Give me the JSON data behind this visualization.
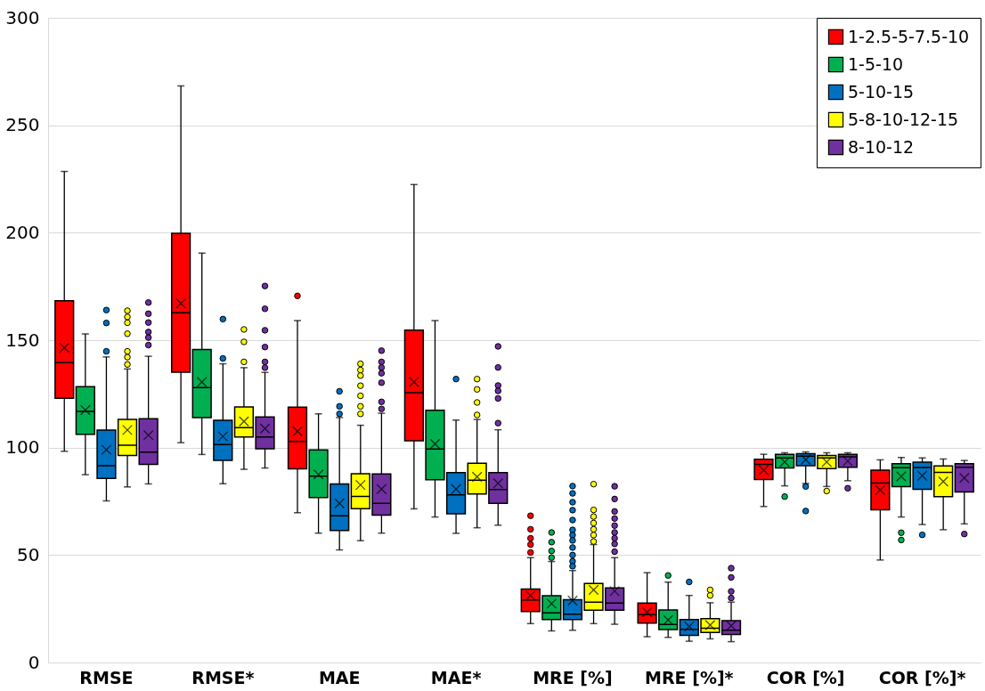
{
  "chart_data": {
    "type": "box",
    "categories": [
      "RMSE",
      "RMSE*",
      "MAE",
      "MAE*",
      "MRE [%]",
      "MRE [%]*",
      "COR [%]",
      "COR [%]*"
    ],
    "ylim": [
      0,
      300
    ],
    "yticks": [
      0,
      50,
      100,
      150,
      200,
      250,
      300
    ],
    "grid": "y",
    "legend": "top right",
    "series": [
      {
        "name": "1-2.5-5-7.5-10",
        "color": "#ff0000",
        "boxes": [
          {
            "low": 98.3,
            "q1": 123,
            "median": 139.5,
            "q3": 168.3,
            "high": 228.5,
            "mean": 146.5
          },
          {
            "low": 102.3,
            "q1": 135.1,
            "median": 162.7,
            "q3": 199.7,
            "high": 268.3,
            "mean": 167.1
          },
          {
            "low": 69.7,
            "q1": 90.1,
            "median": 102.9,
            "q3": 118.8,
            "high": 159.1,
            "mean": 107.6,
            "outliers": [
              170.6
            ]
          },
          {
            "low": 71.5,
            "q1": 103.2,
            "median": 125.6,
            "q3": 154.7,
            "high": 222.4,
            "mean": 130.5
          },
          {
            "low": 18.1,
            "q1": 23.7,
            "median": 29.1,
            "q3": 34.2,
            "high": 48.8,
            "mean": 31.2,
            "outliers": [
              68.3,
              62.0,
              57.8,
              54.9,
              51.2
            ]
          },
          {
            "low": 12.0,
            "q1": 18.3,
            "median": 22.3,
            "q3": 27.7,
            "high": 41.8,
            "mean": 23.4
          },
          {
            "low": 72.6,
            "q1": 85.2,
            "median": 92.2,
            "q3": 94.6,
            "high": 96.9,
            "mean": 89.5
          },
          {
            "low": 47.7,
            "q1": 71.1,
            "median": 83.5,
            "q3": 89.5,
            "high": 94.3,
            "mean": 80.3
          }
        ]
      },
      {
        "name": "1-5-10",
        "color": "#00b050",
        "boxes": [
          {
            "low": 87.4,
            "q1": 106.2,
            "median": 116.8,
            "q3": 128.4,
            "high": 152.9,
            "mean": 117.5
          },
          {
            "low": 96.8,
            "q1": 113.9,
            "median": 127.9,
            "q3": 145.7,
            "high": 190.5,
            "mean": 130.5
          },
          {
            "low": 60.2,
            "q1": 76.8,
            "median": 86.7,
            "q3": 98.9,
            "high": 115.7,
            "mean": 87.5
          },
          {
            "low": 67.7,
            "q1": 85.1,
            "median": 99.3,
            "q3": 117.4,
            "high": 159.1,
            "mean": 101.7
          },
          {
            "low": 14.7,
            "q1": 20.0,
            "median": 23.1,
            "q3": 31.1,
            "high": 47.0,
            "mean": 27.4,
            "outliers": [
              60.5,
              56.0,
              51.9,
              48.8
            ]
          },
          {
            "low": 11.7,
            "q1": 15.3,
            "median": 17.7,
            "q3": 24.4,
            "high": 37.4,
            "mean": 19.8,
            "outliers": [
              40.5
            ]
          },
          {
            "low": 82.2,
            "q1": 90.5,
            "median": 95.2,
            "q3": 96.9,
            "high": 97.6,
            "mean": 93.3,
            "outliers": [
              77.2
            ]
          },
          {
            "low": 67.7,
            "q1": 81.8,
            "median": 90.6,
            "q3": 92.5,
            "high": 95.4,
            "mean": 86.6,
            "outliers": [
              60.4,
              57.0
            ]
          }
        ]
      },
      {
        "name": "5-10-15",
        "color": "#0070c0",
        "boxes": [
          {
            "low": 75.2,
            "q1": 85.7,
            "median": 91.6,
            "q3": 108.2,
            "high": 142.2,
            "mean": 99.0,
            "outliers": [
              164.0,
              158.0,
              144.8
            ]
          },
          {
            "low": 83.2,
            "q1": 94.1,
            "median": 101.4,
            "q3": 112.7,
            "high": 139.0,
            "mean": 105.2,
            "outliers": [
              159.8,
              141.5
            ]
          },
          {
            "low": 52.4,
            "q1": 61.4,
            "median": 68.3,
            "q3": 83.1,
            "high": 114.0,
            "mean": 74.1,
            "outliers": [
              126.2,
              119.2,
              115.7
            ]
          },
          {
            "low": 60.1,
            "q1": 69.2,
            "median": 78.0,
            "q3": 88.4,
            "high": 112.8,
            "mean": 80.7,
            "outliers": [
              131.9
            ]
          },
          {
            "low": 15.0,
            "q1": 20.0,
            "median": 22.5,
            "q3": 29.2,
            "high": 42.8,
            "mean": 28.8,
            "outliers": [
              82.1,
              78.7,
              74.6,
              70.9,
              66.3,
              61.7,
              59.3,
              56.8,
              53.5,
              50.0,
              47.1,
              44.8
            ]
          },
          {
            "low": 9.9,
            "q1": 12.6,
            "median": 15.4,
            "q3": 20.0,
            "high": 31.2,
            "mean": 16.8,
            "outliers": [
              37.5
            ]
          },
          {
            "low": 83.3,
            "q1": 91.6,
            "median": 96.0,
            "q3": 97.2,
            "high": 98.0,
            "mean": 94.4,
            "outliers": [
              81.9,
              70.5
            ]
          },
          {
            "low": 64.2,
            "q1": 80.6,
            "median": 90.7,
            "q3": 93.2,
            "high": 95.2,
            "mean": 86.9,
            "outliers": [
              59.4
            ]
          }
        ]
      },
      {
        "name": "5-8-10-12-15",
        "color": "#ffff00",
        "boxes": [
          {
            "low": 81.7,
            "q1": 96.3,
            "median": 101.1,
            "q3": 113.1,
            "high": 136.6,
            "mean": 108.2,
            "outliers": [
              163.7,
              160.8,
              158.1,
              153.0,
              144.8,
              142.1,
              138.7
            ]
          },
          {
            "low": 89.9,
            "q1": 104.9,
            "median": 109.3,
            "q3": 118.9,
            "high": 137.2,
            "mean": 112.2,
            "outliers": [
              155.0,
              149.2,
              139.9
            ]
          },
          {
            "low": 56.7,
            "q1": 71.6,
            "median": 77.3,
            "q3": 87.8,
            "high": 110.4,
            "mean": 82.6,
            "outliers": [
              139.0,
              136.1,
              133.5,
              128.8,
              124.1,
              119.2,
              115.7
            ]
          },
          {
            "low": 62.7,
            "q1": 78.4,
            "median": 84.8,
            "q3": 92.7,
            "high": 113.1,
            "mean": 86.4,
            "outliers": [
              131.9,
              127.1,
              121.0,
              115.2
            ]
          },
          {
            "low": 18.1,
            "q1": 24.3,
            "median": 28.1,
            "q3": 36.8,
            "high": 54.9,
            "mean": 33.8,
            "outliers": [
              83.0,
              71.0,
              67.9,
              64.9,
              62.0,
              59.3,
              56.3
            ]
          },
          {
            "low": 11.0,
            "q1": 14.0,
            "median": 16.0,
            "q3": 20.4,
            "high": 27.8,
            "mean": 17.4,
            "outliers": [
              33.8,
              31.2
            ]
          },
          {
            "low": 81.9,
            "q1": 90.2,
            "median": 95.2,
            "q3": 96.3,
            "high": 97.6,
            "mean": 93.3,
            "outliers": [
              79.8
            ]
          },
          {
            "low": 61.8,
            "q1": 77.2,
            "median": 88.5,
            "q3": 91.5,
            "high": 94.7,
            "mean": 84.2
          }
        ]
      },
      {
        "name": "8-10-12",
        "color": "#7030a0",
        "boxes": [
          {
            "low": 83.1,
            "q1": 92.2,
            "median": 97.9,
            "q3": 113.4,
            "high": 142.5,
            "mean": 105.8,
            "outliers": [
              167.5,
              162.3,
              158.2,
              153.8,
              151.2,
              147.7
            ]
          },
          {
            "low": 90.5,
            "q1": 99.4,
            "median": 104.9,
            "q3": 114.3,
            "high": 135.0,
            "mean": 108.9,
            "outliers": [
              175.2,
              164.6,
              154.6,
              146.8,
              139.9,
              137.2
            ]
          },
          {
            "low": 60.2,
            "q1": 68.6,
            "median": 74.1,
            "q3": 87.7,
            "high": 116.0,
            "mean": 80.7,
            "outliers": [
              145.1,
              139.9,
              137.3,
              134.6,
              130.2,
              121.3,
              118.0
            ]
          },
          {
            "low": 63.9,
            "q1": 74.1,
            "median": 80.5,
            "q3": 88.4,
            "high": 108.3,
            "mean": 83.4,
            "outliers": [
              147.1,
              137.3,
              128.9,
              126.4,
              122.9,
              111.4
            ]
          },
          {
            "low": 17.8,
            "q1": 24.3,
            "median": 27.7,
            "q3": 34.7,
            "high": 48.8,
            "mean": 33.2,
            "outliers": [
              82.0,
              76.1,
              70.3,
              67.0,
              63.7,
              60.5,
              57.8,
              55.2,
              51.6
            ]
          },
          {
            "low": 9.7,
            "q1": 13.1,
            "median": 15.0,
            "q3": 19.5,
            "high": 28.1,
            "mean": 17.1,
            "outliers": [
              43.9,
              39.6,
              33.1,
              30.0
            ]
          },
          {
            "low": 84.6,
            "q1": 90.9,
            "median": 95.7,
            "q3": 96.9,
            "high": 97.6,
            "mean": 93.7,
            "outliers": [
              81.1
            ]
          },
          {
            "low": 64.5,
            "q1": 79.3,
            "median": 90.9,
            "q3": 92.5,
            "high": 94.0,
            "mean": 85.9,
            "outliers": [
              59.8
            ]
          }
        ]
      }
    ]
  }
}
